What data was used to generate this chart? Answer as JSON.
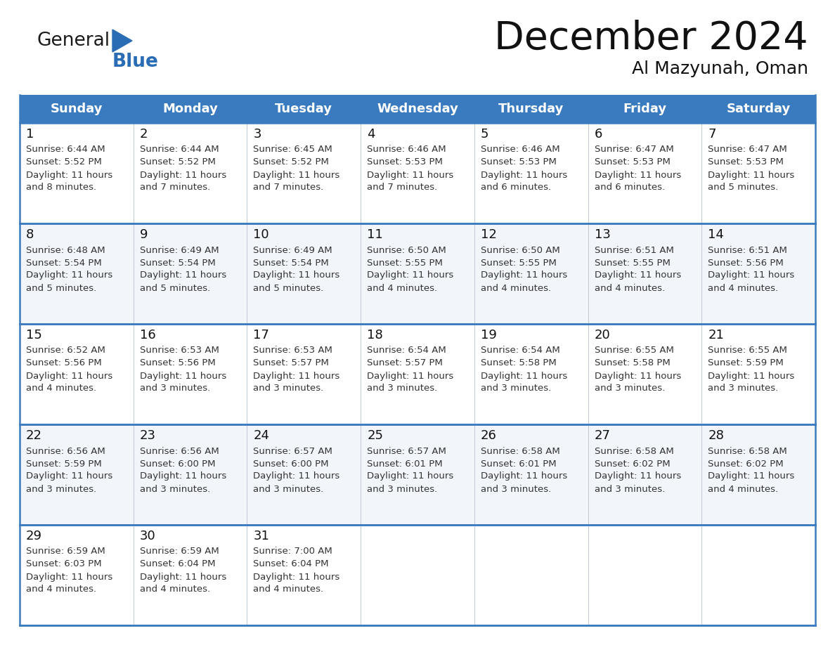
{
  "title": "December 2024",
  "subtitle": "Al Mazyunah, Oman",
  "header_color": "#3a7abf",
  "header_text_color": "#ffffff",
  "days_of_week": [
    "Sunday",
    "Monday",
    "Tuesday",
    "Wednesday",
    "Thursday",
    "Friday",
    "Saturday"
  ],
  "background_color": "#ffffff",
  "cell_bg_light": "#f2f6fb",
  "cell_bg_white": "#ffffff",
  "row_line_color": "#3a7abf",
  "text_color": "#333333",
  "day_num_color": "#111111",
  "calendar_data": [
    [
      {
        "day": 1,
        "sunrise": "6:44 AM",
        "sunset": "5:52 PM",
        "daylight": "11 hours and 8 minutes."
      },
      {
        "day": 2,
        "sunrise": "6:44 AM",
        "sunset": "5:52 PM",
        "daylight": "11 hours and 7 minutes."
      },
      {
        "day": 3,
        "sunrise": "6:45 AM",
        "sunset": "5:52 PM",
        "daylight": "11 hours and 7 minutes."
      },
      {
        "day": 4,
        "sunrise": "6:46 AM",
        "sunset": "5:53 PM",
        "daylight": "11 hours and 7 minutes."
      },
      {
        "day": 5,
        "sunrise": "6:46 AM",
        "sunset": "5:53 PM",
        "daylight": "11 hours and 6 minutes."
      },
      {
        "day": 6,
        "sunrise": "6:47 AM",
        "sunset": "5:53 PM",
        "daylight": "11 hours and 6 minutes."
      },
      {
        "day": 7,
        "sunrise": "6:47 AM",
        "sunset": "5:53 PM",
        "daylight": "11 hours and 5 minutes."
      }
    ],
    [
      {
        "day": 8,
        "sunrise": "6:48 AM",
        "sunset": "5:54 PM",
        "daylight": "11 hours and 5 minutes."
      },
      {
        "day": 9,
        "sunrise": "6:49 AM",
        "sunset": "5:54 PM",
        "daylight": "11 hours and 5 minutes."
      },
      {
        "day": 10,
        "sunrise": "6:49 AM",
        "sunset": "5:54 PM",
        "daylight": "11 hours and 5 minutes."
      },
      {
        "day": 11,
        "sunrise": "6:50 AM",
        "sunset": "5:55 PM",
        "daylight": "11 hours and 4 minutes."
      },
      {
        "day": 12,
        "sunrise": "6:50 AM",
        "sunset": "5:55 PM",
        "daylight": "11 hours and 4 minutes."
      },
      {
        "day": 13,
        "sunrise": "6:51 AM",
        "sunset": "5:55 PM",
        "daylight": "11 hours and 4 minutes."
      },
      {
        "day": 14,
        "sunrise": "6:51 AM",
        "sunset": "5:56 PM",
        "daylight": "11 hours and 4 minutes."
      }
    ],
    [
      {
        "day": 15,
        "sunrise": "6:52 AM",
        "sunset": "5:56 PM",
        "daylight": "11 hours and 4 minutes."
      },
      {
        "day": 16,
        "sunrise": "6:53 AM",
        "sunset": "5:56 PM",
        "daylight": "11 hours and 3 minutes."
      },
      {
        "day": 17,
        "sunrise": "6:53 AM",
        "sunset": "5:57 PM",
        "daylight": "11 hours and 3 minutes."
      },
      {
        "day": 18,
        "sunrise": "6:54 AM",
        "sunset": "5:57 PM",
        "daylight": "11 hours and 3 minutes."
      },
      {
        "day": 19,
        "sunrise": "6:54 AM",
        "sunset": "5:58 PM",
        "daylight": "11 hours and 3 minutes."
      },
      {
        "day": 20,
        "sunrise": "6:55 AM",
        "sunset": "5:58 PM",
        "daylight": "11 hours and 3 minutes."
      },
      {
        "day": 21,
        "sunrise": "6:55 AM",
        "sunset": "5:59 PM",
        "daylight": "11 hours and 3 minutes."
      }
    ],
    [
      {
        "day": 22,
        "sunrise": "6:56 AM",
        "sunset": "5:59 PM",
        "daylight": "11 hours and 3 minutes."
      },
      {
        "day": 23,
        "sunrise": "6:56 AM",
        "sunset": "6:00 PM",
        "daylight": "11 hours and 3 minutes."
      },
      {
        "day": 24,
        "sunrise": "6:57 AM",
        "sunset": "6:00 PM",
        "daylight": "11 hours and 3 minutes."
      },
      {
        "day": 25,
        "sunrise": "6:57 AM",
        "sunset": "6:01 PM",
        "daylight": "11 hours and 3 minutes."
      },
      {
        "day": 26,
        "sunrise": "6:58 AM",
        "sunset": "6:01 PM",
        "daylight": "11 hours and 3 minutes."
      },
      {
        "day": 27,
        "sunrise": "6:58 AM",
        "sunset": "6:02 PM",
        "daylight": "11 hours and 3 minutes."
      },
      {
        "day": 28,
        "sunrise": "6:58 AM",
        "sunset": "6:02 PM",
        "daylight": "11 hours and 4 minutes."
      }
    ],
    [
      {
        "day": 29,
        "sunrise": "6:59 AM",
        "sunset": "6:03 PM",
        "daylight": "11 hours and 4 minutes."
      },
      {
        "day": 30,
        "sunrise": "6:59 AM",
        "sunset": "6:04 PM",
        "daylight": "11 hours and 4 minutes."
      },
      {
        "day": 31,
        "sunrise": "7:00 AM",
        "sunset": "6:04 PM",
        "daylight": "11 hours and 4 minutes."
      },
      null,
      null,
      null,
      null
    ]
  ],
  "logo_color_general": "#1a1a1a",
  "logo_color_blue": "#2a6db5",
  "logo_triangle_color": "#2a6db5"
}
